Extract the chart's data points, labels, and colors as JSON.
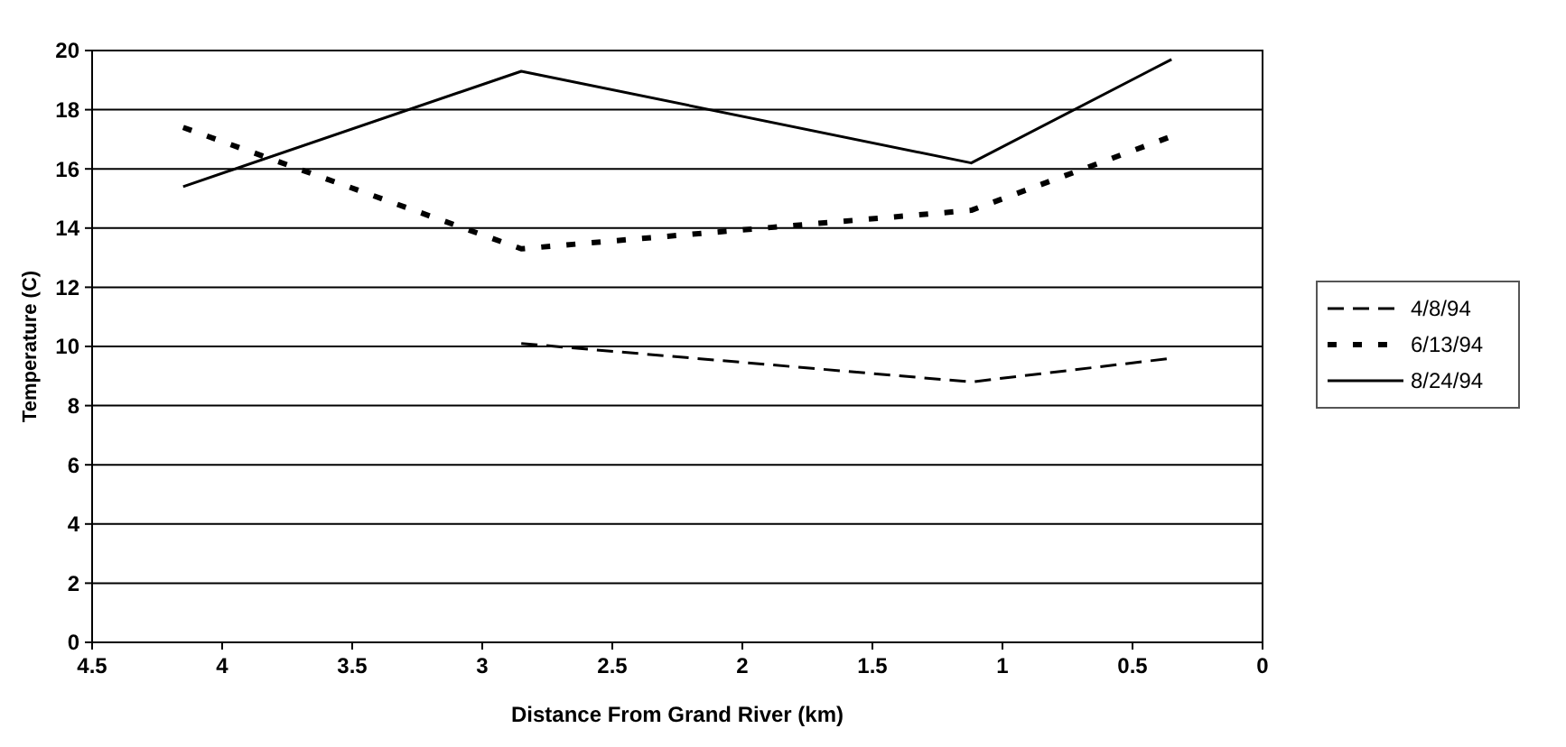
{
  "chart_data": {
    "type": "line",
    "xlabel": "Distance From Grand River (km)",
    "ylabel": "Temperature (C)",
    "xlim": [
      4.5,
      0
    ],
    "xticks": [
      4.5,
      4,
      3.5,
      3,
      2.5,
      2,
      1.5,
      1,
      0.5,
      0
    ],
    "ylim": [
      0,
      20
    ],
    "yticks": [
      0,
      2,
      4,
      6,
      8,
      10,
      12,
      14,
      16,
      18,
      20
    ],
    "grid": "y",
    "legend": "right",
    "marker": "none",
    "series": [
      {
        "name": "4/8/94",
        "color": "#000000",
        "line_style": "dashed",
        "x": [
          2.85,
          1.12,
          0.35
        ],
        "values": [
          10.1,
          8.8,
          9.6
        ]
      },
      {
        "name": "6/13/94",
        "color": "#000000",
        "line_style": "dotted",
        "x": [
          4.15,
          2.85,
          1.12,
          0.35
        ],
        "values": [
          17.4,
          13.3,
          14.6,
          17.1
        ]
      },
      {
        "name": "8/24/94",
        "color": "#000000",
        "line_style": "solid",
        "x": [
          4.15,
          2.85,
          1.12,
          0.35
        ],
        "values": [
          15.4,
          19.3,
          16.2,
          19.7
        ]
      }
    ]
  }
}
